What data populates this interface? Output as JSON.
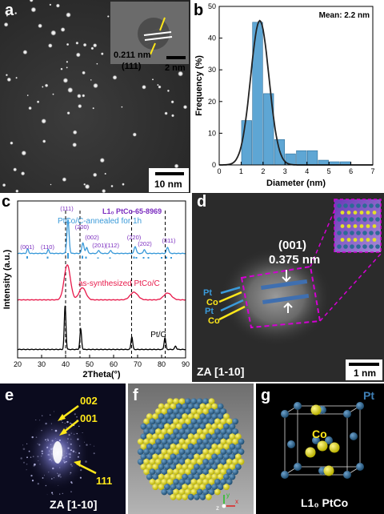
{
  "panels": {
    "a": {
      "label": "a",
      "inset_spacing": "0.211 nm",
      "inset_plane": "(111)",
      "inset_scale": "2 nm",
      "scale": "10 nm"
    },
    "b": {
      "label": "b"
    },
    "c": {
      "label": "c"
    },
    "d": {
      "label": "d",
      "plane": "(001)",
      "spacing": "0.375 nm",
      "atoms": [
        "Pt",
        "Co",
        "Pt",
        "Co"
      ],
      "zone_axis": "ZA [1-10]",
      "scale": "1 nm"
    },
    "e": {
      "label": "e",
      "spots": [
        "002",
        "001",
        "111"
      ],
      "zone_axis": "ZA [1-10]"
    },
    "f": {
      "label": "f",
      "axes": [
        "y",
        "x",
        "z"
      ]
    },
    "g": {
      "label": "g",
      "pt_label": "Pt",
      "co_label": "Co",
      "title": "L1₀ PtCo"
    }
  },
  "colors": {
    "pt_blue": "#2d6a96",
    "co_yellow": "#e5e029",
    "bar_blue": "#5ea6d4",
    "annealed": "#3a9ad9",
    "synth": "#e8194a",
    "magenta": "#d400d4",
    "label_yellow": "#ffe81a",
    "reference_purple": "#7a2bbf"
  },
  "chart_data": [
    {
      "type": "bar",
      "panel": "b",
      "title": "",
      "annotation": "Mean: 2.2 nm",
      "xlabel": "Diameter (nm)",
      "ylabel": "Frequency (%)",
      "xlim": [
        0,
        7
      ],
      "ylim": [
        0,
        50
      ],
      "xticks": [
        0,
        1,
        2,
        3,
        4,
        5,
        6,
        7
      ],
      "yticks": [
        0,
        10,
        20,
        30,
        40,
        50
      ],
      "bars": [
        {
          "x": 1.25,
          "y": 14
        },
        {
          "x": 1.75,
          "y": 45
        },
        {
          "x": 2.25,
          "y": 22.5
        },
        {
          "x": 2.75,
          "y": 8
        },
        {
          "x": 3.25,
          "y": 3.5
        },
        {
          "x": 3.75,
          "y": 4.5
        },
        {
          "x": 4.25,
          "y": 4.5
        },
        {
          "x": 4.75,
          "y": 1.5
        },
        {
          "x": 5.25,
          "y": 1
        },
        {
          "x": 5.75,
          "y": 1
        }
      ],
      "fit": {
        "type": "gaussian",
        "center": 1.85,
        "sigma": 0.42,
        "peak": 45.5
      }
    },
    {
      "type": "line",
      "panel": "c",
      "xlabel": "2Theta(°)",
      "ylabel": "Intensity (a.u.)",
      "xlim": [
        20,
        90
      ],
      "xticks": [
        20,
        30,
        40,
        50,
        60,
        70,
        80,
        90
      ],
      "reference_label": "L1₀ PtCo-65-8969",
      "reference_peaks": [
        {
          "x": 24,
          "label": "(001)",
          "h": 6
        },
        {
          "x": 32.5,
          "label": "(110)",
          "h": 5
        },
        {
          "x": 41,
          "label": "(111)",
          "h": 14
        },
        {
          "x": 47,
          "label": "(200)",
          "h": 7
        },
        {
          "x": 48.5,
          "label": "(002)",
          "h": 5
        },
        {
          "x": 53.5,
          "label": "(201)",
          "h": 3
        },
        {
          "x": 58.5,
          "label": "(112)",
          "h": 3
        },
        {
          "x": 68.5,
          "label": "(220)",
          "h": 5
        },
        {
          "x": 72.5,
          "label": "(202)",
          "h": 4
        },
        {
          "x": 82,
          "label": "(311)",
          "h": 5
        }
      ],
      "extra_ticks": [
        69.5,
        74.5,
        80,
        84
      ],
      "reference_lines": [
        40,
        46,
        67.5,
        81.5
      ],
      "series": [
        {
          "name": "PtCo/C-annealed for 1h",
          "color": "#3a9ad9",
          "baseline": 0,
          "peaks": [
            {
              "x": 24.2,
              "h": 6,
              "w": 0.35
            },
            {
              "x": 32.8,
              "h": 5,
              "w": 0.35
            },
            {
              "x": 41.0,
              "h": 44,
              "w": 0.45
            },
            {
              "x": 47.2,
              "h": 14,
              "w": 0.45
            },
            {
              "x": 48.8,
              "h": 8,
              "w": 0.4
            },
            {
              "x": 53.8,
              "h": 4,
              "w": 0.4
            },
            {
              "x": 58.8,
              "h": 4,
              "w": 0.4
            },
            {
              "x": 69.0,
              "h": 9,
              "w": 0.45
            },
            {
              "x": 72.8,
              "h": 5,
              "w": 0.4
            },
            {
              "x": 82.5,
              "h": 8,
              "w": 0.45
            }
          ]
        },
        {
          "name": "as-synthesized PtCo/C",
          "color": "#e8194a",
          "baseline": 0,
          "peaks": [
            {
              "x": 40.7,
              "h": 46,
              "w": 1.3
            },
            {
              "x": 47.0,
              "h": 16,
              "w": 1.4
            },
            {
              "x": 68.5,
              "h": 10,
              "w": 1.6
            },
            {
              "x": 82.5,
              "h": 9,
              "w": 1.6
            }
          ]
        },
        {
          "name": "Pt/C",
          "color": "#000000",
          "baseline": 0,
          "peaks": [
            {
              "x": 39.8,
              "h": 52,
              "w": 0.35
            },
            {
              "x": 46.3,
              "h": 24,
              "w": 0.35
            },
            {
              "x": 67.6,
              "h": 15,
              "w": 0.35
            },
            {
              "x": 81.4,
              "h": 14,
              "w": 0.35
            },
            {
              "x": 85.8,
              "h": 4,
              "w": 0.35
            }
          ]
        }
      ]
    }
  ]
}
